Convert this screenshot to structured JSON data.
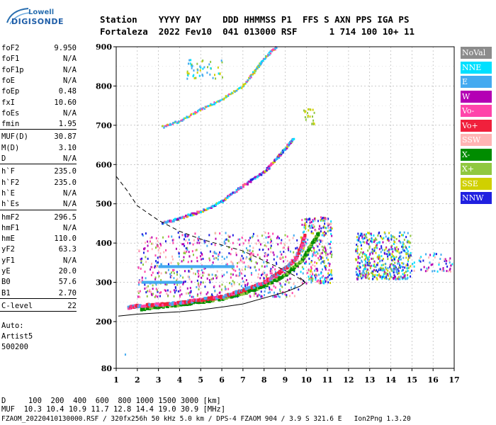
{
  "logo": {
    "line1": "Lowell",
    "line2": "DIGISONDE"
  },
  "header": {
    "line1": "Station    YYYY DAY    DDD HHMMSS P1  FFS S AXN PPS IGA PS",
    "line2": "Fortaleza  2022 Fev10  041 013000 RSF      1 714 100 10+ 11"
  },
  "params": [
    [
      {
        "name": "foF2",
        "value": "9.950"
      },
      {
        "name": "foF1",
        "value": "N/A"
      },
      {
        "name": "foF1p",
        "value": "N/A"
      },
      {
        "name": "foE",
        "value": "N/A"
      },
      {
        "name": "foEp",
        "value": "0.48"
      },
      {
        "name": "fxI",
        "value": "10.60"
      },
      {
        "name": "foEs",
        "value": "N/A"
      },
      {
        "name": "fmin",
        "value": "1.95"
      }
    ],
    [
      {
        "name": "MUF(D)",
        "value": "30.87"
      },
      {
        "name": "M(D)",
        "value": "3.10"
      },
      {
        "name": "D",
        "value": "N/A"
      }
    ],
    [
      {
        "name": "h`F",
        "value": "235.0"
      },
      {
        "name": "h`F2",
        "value": "235.0"
      },
      {
        "name": "h`E",
        "value": "N/A"
      },
      {
        "name": "h`Es",
        "value": "N/A"
      }
    ],
    [
      {
        "name": "hmF2",
        "value": "296.5"
      },
      {
        "name": "hmF1",
        "value": "N/A"
      },
      {
        "name": "hmE",
        "value": "110.0"
      },
      {
        "name": "yF2",
        "value": "63.3"
      },
      {
        "name": "yF1",
        "value": "N/A"
      },
      {
        "name": "yE",
        "value": "20.0"
      },
      {
        "name": "B0",
        "value": "57.6"
      },
      {
        "name": "B1",
        "value": "2.70"
      }
    ],
    [
      {
        "name": "C-level",
        "value": "22"
      }
    ]
  ],
  "auto": {
    "line1": "Auto:",
    "line2": "Artist5",
    "line3": "500200"
  },
  "legend": [
    {
      "label": "NoVal",
      "color": "#8c8c8c"
    },
    {
      "label": "NNE",
      "color": "#00e0ff"
    },
    {
      "label": "E",
      "color": "#44aaf0"
    },
    {
      "label": "W",
      "color": "#b400b4"
    },
    {
      "label": "Vo-",
      "color": "#ff44aa"
    },
    {
      "label": "Vo+",
      "color": "#f0203c"
    },
    {
      "label": "SSW",
      "color": "#ffb4b4"
    },
    {
      "label": "X-",
      "color": "#008c00"
    },
    {
      "label": "X+",
      "color": "#90c840"
    },
    {
      "label": "SSE",
      "color": "#d0d000"
    },
    {
      "label": "NNW",
      "color": "#2020e0"
    }
  ],
  "chart_data": {
    "type": "scatter",
    "xlim": [
      1,
      17
    ],
    "ylim": [
      80,
      900
    ],
    "x_ticks": [
      "1",
      "2",
      "3",
      "4",
      "5",
      "6",
      "7",
      "8",
      "9",
      "10",
      "11",
      "12",
      "13",
      "14",
      "15",
      "16",
      "17"
    ],
    "y_ticks": [
      "80",
      "200",
      "300",
      "400",
      "500",
      "600",
      "700",
      "800",
      "900"
    ],
    "grid": true,
    "traces": {
      "o_trace": [
        [
          1.6,
          235
        ],
        [
          2.0,
          240
        ],
        [
          3.0,
          243
        ],
        [
          4.0,
          248
        ],
        [
          5.0,
          255
        ],
        [
          6.0,
          263
        ],
        [
          7.0,
          278
        ],
        [
          8.0,
          300
        ],
        [
          8.5,
          315
        ],
        [
          9.0,
          335
        ],
        [
          9.5,
          360
        ],
        [
          9.8,
          395
        ],
        [
          9.95,
          420
        ]
      ],
      "x_trace": [
        [
          2.2,
          232
        ],
        [
          3.0,
          238
        ],
        [
          4.0,
          243
        ],
        [
          5.0,
          250
        ],
        [
          6.0,
          258
        ],
        [
          7.0,
          272
        ],
        [
          8.0,
          290
        ],
        [
          9.0,
          318
        ],
        [
          9.8,
          355
        ],
        [
          10.3,
          400
        ],
        [
          10.6,
          425
        ]
      ],
      "second_hop": [
        [
          3.2,
          450
        ],
        [
          4.0,
          462
        ],
        [
          5.0,
          480
        ],
        [
          6.0,
          505
        ],
        [
          7.0,
          545
        ],
        [
          8.0,
          580
        ],
        [
          8.6,
          615
        ],
        [
          9.0,
          640
        ],
        [
          9.4,
          665
        ]
      ],
      "third_hop": [
        [
          3.2,
          695
        ],
        [
          4.0,
          710
        ],
        [
          5.0,
          740
        ],
        [
          6.0,
          765
        ],
        [
          7.0,
          800
        ],
        [
          7.6,
          840
        ],
        [
          8.0,
          870
        ],
        [
          8.6,
          900
        ]
      ],
      "profile_solid": [
        [
          1.1,
          214
        ],
        [
          2.0,
          219
        ],
        [
          3.0,
          222
        ],
        [
          4.0,
          225
        ],
        [
          5.0,
          230
        ],
        [
          6.0,
          237
        ],
        [
          7.0,
          245
        ],
        [
          8.0,
          260
        ],
        [
          9.0,
          275
        ],
        [
          9.7,
          290
        ],
        [
          9.95,
          300
        ],
        [
          9.7,
          312
        ]
      ],
      "profile_dashed": [
        [
          1.0,
          570
        ],
        [
          1.5,
          535
        ],
        [
          2.0,
          495
        ],
        [
          3.0,
          458
        ],
        [
          4.0,
          430
        ],
        [
          5.0,
          410
        ],
        [
          6.0,
          395
        ],
        [
          7.0,
          380
        ],
        [
          8.0,
          355
        ],
        [
          9.0,
          330
        ],
        [
          9.6,
          312
        ],
        [
          9.95,
          300
        ]
      ]
    },
    "scatter_regions": [
      {
        "xr": [
          2.0,
          9.6
        ],
        "yr": [
          265,
          430
        ],
        "colors": [
          "W",
          "Vo-",
          "SSW",
          "E",
          "NNW",
          "X+"
        ],
        "n": 700
      },
      {
        "xr": [
          9.7,
          11.2
        ],
        "yr": [
          300,
          470
        ],
        "colors": [
          "W",
          "Vo-",
          "SSW",
          "E",
          "NNW",
          "NNE",
          "SSE",
          "X+"
        ],
        "n": 300
      },
      {
        "xr": [
          12.3,
          14.9
        ],
        "yr": [
          310,
          430
        ],
        "colors": [
          "NNW",
          "E",
          "W",
          "NNE",
          "X+",
          "SSE"
        ],
        "n": 500
      },
      {
        "xr": [
          14.9,
          16.9
        ],
        "yr": [
          330,
          380
        ],
        "colors": [
          "NNW",
          "E",
          "NNE",
          "W",
          "SSW"
        ],
        "n": 60
      },
      {
        "xr": [
          4.3,
          6.0
        ],
        "yr": [
          820,
          870
        ],
        "colors": [
          "SSE",
          "NNE",
          "E",
          "X+"
        ],
        "n": 50
      },
      {
        "xr": [
          9.8,
          10.4
        ],
        "yr": [
          705,
          745
        ],
        "colors": [
          "SSE",
          "X+"
        ],
        "n": 20
      }
    ]
  },
  "footer": {
    "line1": "D     100  200  400  600  800 1000 1500 3000 [km]",
    "line2": "MUF  10.3 10.4 10.9 11.7 12.8 14.4 19.0 30.9 [MHz]",
    "line3": "FZAOM_20220410130000.RSF / 320fx256h 50 kHz 5.0 km / DPS-4 FZAOM 904 / 3.9 S 321.6 E   Ion2Png 1.3.20"
  }
}
